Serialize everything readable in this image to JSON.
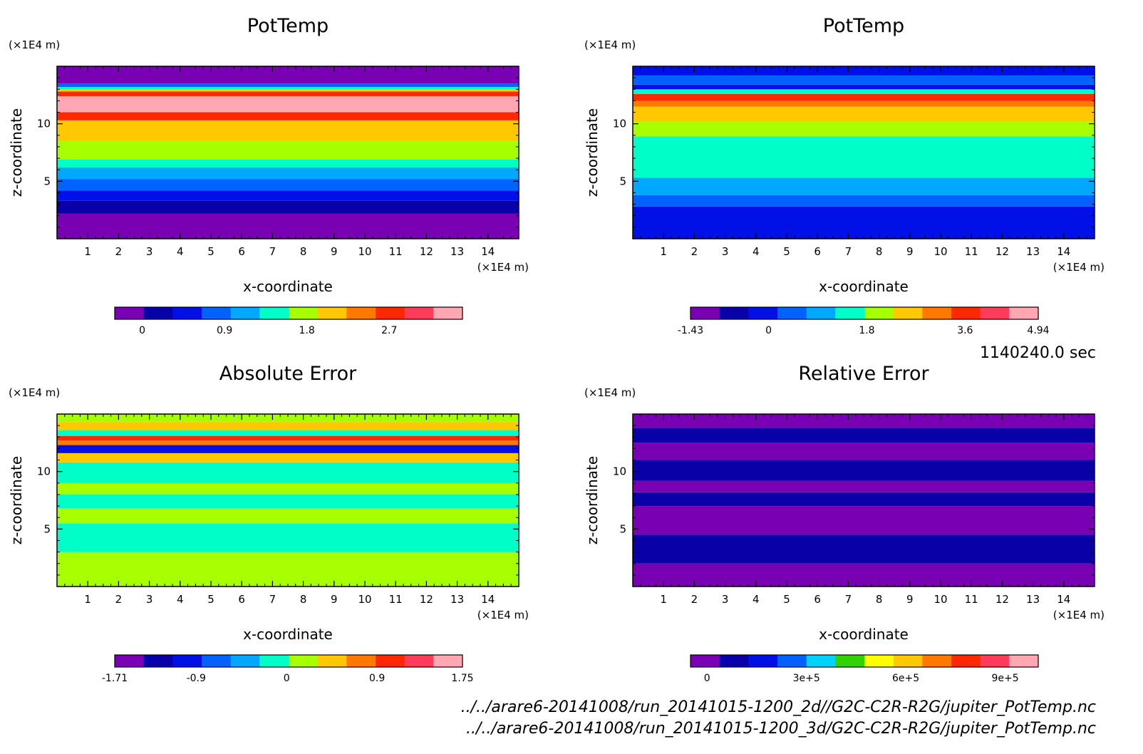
{
  "footer": {
    "time": "1140240.0 sec",
    "file1": "../../arare6-20141008/run_20141015-1200_2d//G2C-C2R-R2G/jupiter_PotTemp.nc",
    "file2": "../../arare6-20141008/run_20141015-1200_3d/G2C-C2R-R2G/jupiter_PotTemp.nc"
  },
  "chart_data": [
    {
      "type": "heatmap",
      "title": "PotTemp",
      "xlabel": "x-coordinate",
      "ylabel": "z-coordinate",
      "xunit": "(×1E4 m)",
      "yunit": "(×1E4 m)",
      "xlim": [
        0,
        15
      ],
      "ylim": [
        0,
        15
      ],
      "xticks": [
        "1",
        "2",
        "3",
        "4",
        "5",
        "6",
        "7",
        "8",
        "9",
        "10",
        "11",
        "12",
        "13",
        "14"
      ],
      "yticks": [
        "5",
        "10"
      ],
      "colorbar": {
        "range": [
          -0.3,
          3.5
        ],
        "ticks": [
          {
            "v": 0,
            "label": "0"
          },
          {
            "v": 0.9,
            "label": "0.9"
          },
          {
            "v": 1.8,
            "label": "1.8"
          },
          {
            "v": 2.7,
            "label": "2.7"
          }
        ],
        "colors": [
          "#7a00b4",
          "#0a00a8",
          "#0010e6",
          "#0062ff",
          "#00a8ff",
          "#00ffc8",
          "#a8ff00",
          "#ffc800",
          "#ff7800",
          "#ff2800",
          "#ff3c5a",
          "#ffa8b4"
        ]
      },
      "layers": [
        {
          "z0": 0.0,
          "z1": 2.2,
          "color": "#7a00b4"
        },
        {
          "z0": 2.2,
          "z1": 3.3,
          "color": "#0a00a8"
        },
        {
          "z0": 3.3,
          "z1": 4.2,
          "color": "#0010e6"
        },
        {
          "z0": 4.2,
          "z1": 5.2,
          "color": "#0062ff"
        },
        {
          "z0": 5.2,
          "z1": 6.2,
          "color": "#00a8ff"
        },
        {
          "z0": 6.2,
          "z1": 6.9,
          "color": "#00ffc8"
        },
        {
          "z0": 6.9,
          "z1": 8.5,
          "color": "#a8ff00"
        },
        {
          "z0": 8.5,
          "z1": 10.3,
          "color": "#ffc800"
        },
        {
          "z0": 10.3,
          "z1": 11.0,
          "color": "#ff2800"
        },
        {
          "z0": 11.0,
          "z1": 12.4,
          "color": "#ffa8b4"
        },
        {
          "z0": 12.4,
          "z1": 12.8,
          "color": "#ff2800"
        },
        {
          "z0": 12.8,
          "z1": 13.0,
          "color": "#ffc800"
        },
        {
          "z0": 13.0,
          "z1": 13.2,
          "color": "#00ffc8"
        },
        {
          "z0": 13.2,
          "z1": 13.5,
          "color": "#0062ff"
        },
        {
          "z0": 13.5,
          "z1": 15.0,
          "color": "#7a00b4"
        }
      ]
    },
    {
      "type": "heatmap",
      "title": "PotTemp",
      "xlabel": "x-coordinate",
      "ylabel": "z-coordinate",
      "xunit": "(×1E4 m)",
      "yunit": "(×1E4 m)",
      "xlim": [
        0,
        15
      ],
      "ylim": [
        0,
        15
      ],
      "xticks": [
        "1",
        "2",
        "3",
        "4",
        "5",
        "6",
        "7",
        "8",
        "9",
        "10",
        "11",
        "12",
        "13",
        "14"
      ],
      "yticks": [
        "5",
        "10"
      ],
      "colorbar": {
        "range": [
          -1.43,
          4.94
        ],
        "ticks": [
          {
            "v": -1.43,
            "label": "-1.43"
          },
          {
            "v": 0,
            "label": "0"
          },
          {
            "v": 1.8,
            "label": "1.8"
          },
          {
            "v": 3.6,
            "label": "3.6"
          },
          {
            "v": 4.94,
            "label": "4.94"
          }
        ],
        "colors": [
          "#7a00b4",
          "#0a00a8",
          "#0010e6",
          "#0062ff",
          "#00a8ff",
          "#00ffc8",
          "#a8ff00",
          "#ffc800",
          "#ff7800",
          "#ff2800",
          "#ff3c5a",
          "#ffa8b4"
        ]
      },
      "layers": [
        {
          "z0": 0.0,
          "z1": 2.8,
          "color": "#0010e6"
        },
        {
          "z0": 2.8,
          "z1": 3.8,
          "color": "#0062ff"
        },
        {
          "z0": 3.8,
          "z1": 5.3,
          "color": "#00a8ff"
        },
        {
          "z0": 5.3,
          "z1": 8.9,
          "color": "#00ffc8"
        },
        {
          "z0": 8.9,
          "z1": 10.2,
          "color": "#a8ff00"
        },
        {
          "z0": 10.2,
          "z1": 11.5,
          "color": "#ffc800"
        },
        {
          "z0": 11.5,
          "z1": 12.0,
          "color": "#ff7800"
        },
        {
          "z0": 12.0,
          "z1": 12.6,
          "color": "#ff2800"
        },
        {
          "z0": 12.6,
          "z1": 13.0,
          "color": "#00ffc8"
        },
        {
          "z0": 13.0,
          "z1": 13.4,
          "color": "#0010e6"
        },
        {
          "z0": 13.4,
          "z1": 14.2,
          "color": "#0062ff"
        },
        {
          "z0": 14.2,
          "z1": 15.0,
          "color": "#0010e6"
        }
      ]
    },
    {
      "type": "heatmap",
      "title": "Absolute Error",
      "xlabel": "x-coordinate",
      "ylabel": "z-coordinate",
      "xunit": "(×1E4 m)",
      "yunit": "(×1E4 m)",
      "xlim": [
        0,
        15
      ],
      "ylim": [
        0,
        15
      ],
      "xticks": [
        "1",
        "2",
        "3",
        "4",
        "5",
        "6",
        "7",
        "8",
        "9",
        "10",
        "11",
        "12",
        "13",
        "14"
      ],
      "yticks": [
        "5",
        "10"
      ],
      "colorbar": {
        "range": [
          -1.71,
          1.75
        ],
        "ticks": [
          {
            "v": -1.71,
            "label": "-1.71"
          },
          {
            "v": -0.9,
            "label": "-0.9"
          },
          {
            "v": 0,
            "label": "0"
          },
          {
            "v": 0.9,
            "label": "0.9"
          },
          {
            "v": 1.75,
            "label": "1.75"
          }
        ],
        "colors": [
          "#7a00b4",
          "#0a00a8",
          "#0010e6",
          "#0062ff",
          "#00a8ff",
          "#00ffc8",
          "#a8ff00",
          "#ffc800",
          "#ff7800",
          "#ff2800",
          "#ff3c5a",
          "#ffa8b4"
        ]
      },
      "layers": [
        {
          "z0": 0.0,
          "z1": 3.0,
          "color": "#a8ff00"
        },
        {
          "z0": 3.0,
          "z1": 5.5,
          "color": "#00ffc8"
        },
        {
          "z0": 5.5,
          "z1": 6.8,
          "color": "#a8ff00"
        },
        {
          "z0": 6.8,
          "z1": 8.0,
          "color": "#00ffc8"
        },
        {
          "z0": 8.0,
          "z1": 9.0,
          "color": "#a8ff00"
        },
        {
          "z0": 9.0,
          "z1": 10.8,
          "color": "#00ffc8"
        },
        {
          "z0": 10.8,
          "z1": 11.6,
          "color": "#ffc800"
        },
        {
          "z0": 11.6,
          "z1": 12.3,
          "color": "#0010e6"
        },
        {
          "z0": 12.3,
          "z1": 12.7,
          "color": "#ff7800"
        },
        {
          "z0": 12.7,
          "z1": 13.1,
          "color": "#ff2800"
        },
        {
          "z0": 13.1,
          "z1": 13.6,
          "color": "#00ffc8"
        },
        {
          "z0": 13.6,
          "z1": 14.3,
          "color": "#ffc800"
        },
        {
          "z0": 14.3,
          "z1": 15.0,
          "color": "#a8ff00"
        }
      ]
    },
    {
      "type": "heatmap",
      "title": "Relative Error",
      "xlabel": "x-coordinate",
      "ylabel": "z-coordinate",
      "xunit": "(×1E4 m)",
      "yunit": "(×1E4 m)",
      "xlim": [
        0,
        15
      ],
      "ylim": [
        0,
        15
      ],
      "xticks": [
        "1",
        "2",
        "3",
        "4",
        "5",
        "6",
        "7",
        "8",
        "9",
        "10",
        "11",
        "12",
        "13",
        "14"
      ],
      "yticks": [
        "5",
        "10"
      ],
      "colorbar": {
        "range": [
          -50000,
          1000000
        ],
        "ticks": [
          {
            "v": 0,
            "label": "0"
          },
          {
            "v": 300000,
            "label": "3e+5"
          },
          {
            "v": 600000,
            "label": "6e+5"
          },
          {
            "v": 900000,
            "label": "9e+5"
          }
        ],
        "colors": [
          "#7a00b4",
          "#0a00a8",
          "#0010e6",
          "#0062ff",
          "#00d2ff",
          "#32d200",
          "#ffff00",
          "#ffc800",
          "#ff7800",
          "#ff2800",
          "#ff3c5a",
          "#ffa8b4"
        ]
      },
      "layers": [
        {
          "z0": 0.0,
          "z1": 2.0,
          "color": "#7a00b4"
        },
        {
          "z0": 2.0,
          "z1": 4.5,
          "color": "#0a00a8"
        },
        {
          "z0": 4.5,
          "z1": 7.0,
          "color": "#7a00b4"
        },
        {
          "z0": 7.0,
          "z1": 8.2,
          "color": "#0a00a8"
        },
        {
          "z0": 8.2,
          "z1": 9.2,
          "color": "#7a00b4"
        },
        {
          "z0": 9.2,
          "z1": 11.0,
          "color": "#0a00a8"
        },
        {
          "z0": 11.0,
          "z1": 12.5,
          "color": "#7a00b4"
        },
        {
          "z0": 12.5,
          "z1": 13.8,
          "color": "#0a00a8"
        },
        {
          "z0": 13.8,
          "z1": 15.0,
          "color": "#7a00b4"
        }
      ]
    }
  ]
}
